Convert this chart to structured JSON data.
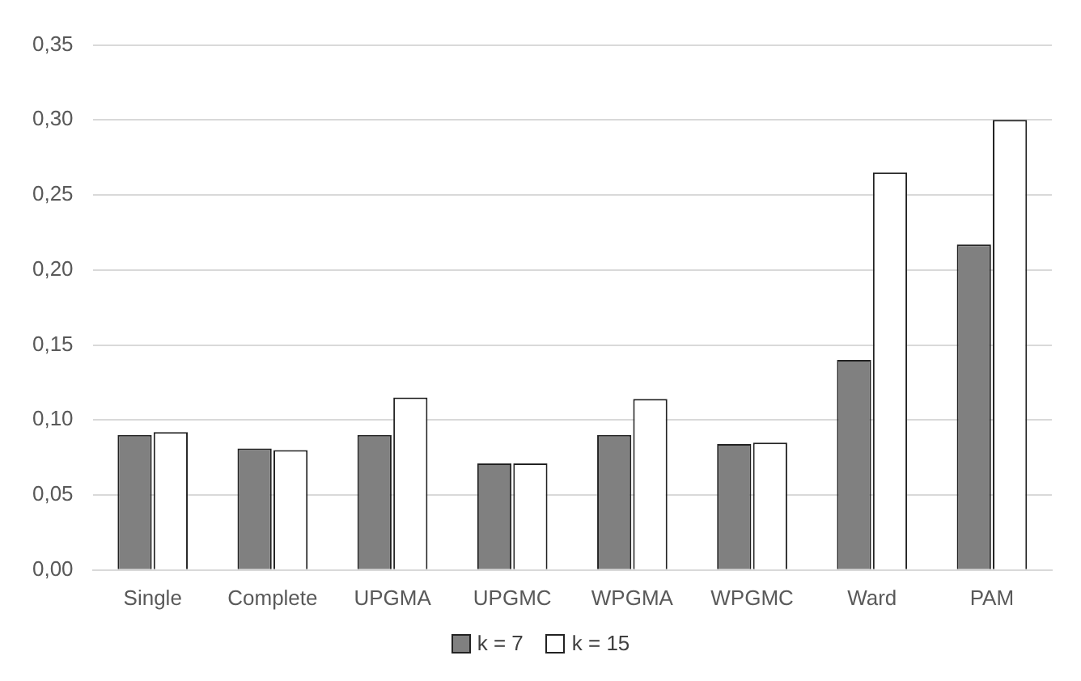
{
  "chart_data": {
    "type": "bar",
    "categories": [
      "Single",
      "Complete",
      "UPGMA",
      "UPGMC",
      "WPGMA",
      "WPGMC",
      "Ward",
      "PAM"
    ],
    "series": [
      {
        "name": "k = 7",
        "color": "#808080",
        "values": [
          0.09,
          0.081,
          0.09,
          0.071,
          0.09,
          0.084,
          0.14,
          0.217
        ]
      },
      {
        "name": "k = 15",
        "color": "#ffffff",
        "values": [
          0.092,
          0.08,
          0.115,
          0.071,
          0.114,
          0.085,
          0.265,
          0.3
        ]
      }
    ],
    "ylim": [
      0,
      0.35
    ],
    "yticks": [
      {
        "value": 0,
        "label": "0,00"
      },
      {
        "value": 0.05,
        "label": "0,05"
      },
      {
        "value": 0.1,
        "label": "0,10"
      },
      {
        "value": 0.15,
        "label": "0,15"
      },
      {
        "value": 0.2,
        "label": "0,20"
      },
      {
        "value": 0.25,
        "label": "0,25"
      },
      {
        "value": 0.3,
        "label": "0,30"
      },
      {
        "value": 0.35,
        "label": "0,35"
      }
    ],
    "grid": "y",
    "legend": "bottom"
  }
}
